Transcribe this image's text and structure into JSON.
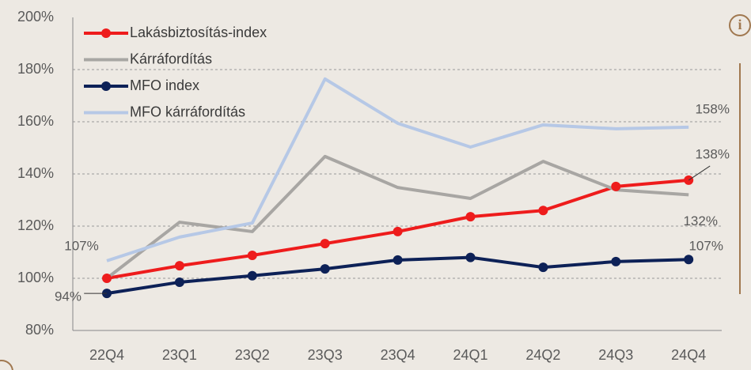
{
  "chart_data": {
    "type": "line",
    "categories": [
      "22Q4",
      "23Q1",
      "23Q2",
      "23Q3",
      "23Q4",
      "24Q1",
      "24Q2",
      "24Q3",
      "24Q4"
    ],
    "series": [
      {
        "name": "Lakásbiztosítás-index",
        "color": "#ee1c1c",
        "marker": true,
        "values": [
          100,
          104.8,
          108.8,
          113.3,
          117.9,
          123.6,
          126,
          135.2,
          137.6
        ],
        "value_labels": [
          null,
          null,
          null,
          null,
          null,
          null,
          null,
          null,
          "138%"
        ]
      },
      {
        "name": "Kárráfordítás",
        "color": "#a8a6a3",
        "marker": false,
        "values": [
          100,
          121.5,
          117.9,
          146.7,
          134.8,
          130.6,
          144.8,
          133.9,
          132
        ],
        "value_labels": [
          null,
          null,
          null,
          null,
          null,
          null,
          null,
          null,
          "132%"
        ]
      },
      {
        "name": "MFO index",
        "color": "#0d2157",
        "marker": true,
        "values": [
          94.2,
          98.5,
          101,
          103.6,
          107,
          108,
          104.2,
          106.4,
          107.2
        ],
        "value_labels": [
          "94%",
          null,
          null,
          null,
          null,
          null,
          null,
          null,
          "107%"
        ]
      },
      {
        "name": "MFO kárráfordítás",
        "color": "#b6c8e6",
        "marker": false,
        "values": [
          106.7,
          115.8,
          121.2,
          176.4,
          159.4,
          150.3,
          158.8,
          157.3,
          157.9
        ],
        "value_labels": [
          "107%",
          null,
          null,
          null,
          null,
          null,
          null,
          null,
          "158%"
        ]
      }
    ],
    "ylim": [
      80,
      200
    ],
    "yticks": [
      {
        "value": 80,
        "label": "80%"
      },
      {
        "value": 100,
        "label": "100%"
      },
      {
        "value": 120,
        "label": "120%"
      },
      {
        "value": 140,
        "label": "140%"
      },
      {
        "value": 160,
        "label": "160%"
      },
      {
        "value": 180,
        "label": "180%"
      },
      {
        "value": 200,
        "label": "200%"
      }
    ],
    "grid": true,
    "legend": "top-left"
  }
}
